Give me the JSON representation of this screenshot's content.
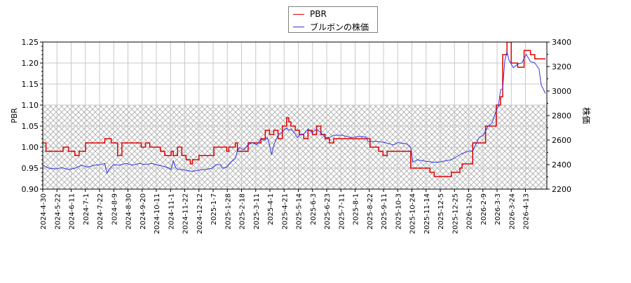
{
  "chart_data": {
    "type": "line",
    "title": "",
    "legend": {
      "position": "top-center",
      "entries": [
        {
          "label": "PBR",
          "color": "#e00000"
        },
        {
          "label": "ブルボンの株価",
          "color": "#3333dd"
        }
      ]
    },
    "xlabel": "",
    "ylabel_left": "PBR",
    "ylabel_right": "株価",
    "ylim_left": [
      0.9,
      1.25
    ],
    "ylim_right": [
      2200,
      3400
    ],
    "yticks_left": [
      "0.90",
      "0.95",
      "1.00",
      "1.05",
      "1.10",
      "1.15",
      "1.20",
      "1.25"
    ],
    "yticks_right": [
      "2200",
      "2400",
      "2600",
      "2800",
      "3000",
      "3200",
      "3400"
    ],
    "xticks": [
      "2024-4-30",
      "2024-5-22",
      "2024-6-11",
      "2024-7-1",
      "2024-7-22",
      "2024-8-9",
      "2024-8-30",
      "2024-9-20",
      "2024-10-11",
      "2024-11-1",
      "2024-11-22",
      "2024-12-12",
      "2025-1-7",
      "2025-1-28",
      "2025-2-18",
      "2025-3-11",
      "2025-4-1",
      "2025-4-21",
      "2025-5-14",
      "2025-6-3",
      "2025-6-23",
      "2025-7-11",
      "2025-8-1",
      "2025-8-22",
      "2025-9-11",
      "2025-10-3",
      "2025-10-24",
      "2025-11-14",
      "2025-12-5",
      "2025-12-25",
      "2026-1-20",
      "2026-2-9",
      "2026-3-3",
      "2026-3-24",
      "2026-4-13"
    ],
    "grid": true,
    "hatched_region": {
      "pbr_from": 0.9,
      "pbr_to": 1.1
    },
    "series": [
      {
        "name": "PBR",
        "axis": "left",
        "color": "#e00000",
        "step": true,
        "points": [
          [
            0,
            1.01
          ],
          [
            1.5,
            0.99
          ],
          [
            9,
            0.99
          ],
          [
            9.5,
            1.0
          ],
          [
            12,
            0.99
          ],
          [
            15,
            0.98
          ],
          [
            17,
            0.99
          ],
          [
            20,
            1.01
          ],
          [
            28,
            1.01
          ],
          [
            29,
            1.02
          ],
          [
            31,
            1.02
          ],
          [
            32,
            1.01
          ],
          [
            34,
            1.01
          ],
          [
            35,
            0.98
          ],
          [
            37,
            1.01
          ],
          [
            44,
            1.01
          ],
          [
            46,
            1.0
          ],
          [
            47,
            1.0
          ],
          [
            48,
            1.01
          ],
          [
            50,
            1.0
          ],
          [
            54,
            1.0
          ],
          [
            55,
            0.99
          ],
          [
            57,
            0.98
          ],
          [
            59,
            0.98
          ],
          [
            60,
            0.99
          ],
          [
            61,
            0.98
          ],
          [
            62,
            0.98
          ],
          [
            63,
            1.0
          ],
          [
            64,
            1.0
          ],
          [
            65,
            0.98
          ],
          [
            67,
            0.97
          ],
          [
            68,
            0.97
          ],
          [
            69,
            0.96
          ],
          [
            70,
            0.97
          ],
          [
            72,
            0.97
          ],
          [
            73,
            0.98
          ],
          [
            79,
            0.98
          ],
          [
            80,
            1.0
          ],
          [
            84,
            1.0
          ],
          [
            86,
            0.99
          ],
          [
            87,
            1.0
          ],
          [
            89,
            1.0
          ],
          [
            90,
            1.01
          ],
          [
            91,
            0.99
          ],
          [
            96,
            1.01
          ],
          [
            100,
            1.01
          ],
          [
            102,
            1.02
          ],
          [
            104,
            1.04
          ],
          [
            106,
            1.03
          ],
          [
            108,
            1.04
          ],
          [
            110,
            1.02
          ],
          [
            112,
            1.05
          ],
          [
            114,
            1.07
          ],
          [
            115,
            1.06
          ],
          [
            116,
            1.05
          ],
          [
            118,
            1.04
          ],
          [
            120,
            1.03
          ],
          [
            122,
            1.02
          ],
          [
            124,
            1.04
          ],
          [
            126,
            1.03
          ],
          [
            128,
            1.05
          ],
          [
            130,
            1.03
          ],
          [
            132,
            1.02
          ],
          [
            134,
            1.01
          ],
          [
            136,
            1.02
          ],
          [
            152,
            1.02
          ],
          [
            153,
            1.0
          ],
          [
            156,
            1.0
          ],
          [
            157,
            0.99
          ],
          [
            159,
            0.98
          ],
          [
            161,
            0.99
          ],
          [
            171,
            0.99
          ],
          [
            172,
            0.95
          ],
          [
            180,
            0.95
          ],
          [
            181,
            0.94
          ],
          [
            183,
            0.93
          ],
          [
            189,
            0.93
          ],
          [
            191,
            0.94
          ],
          [
            194,
            0.94
          ],
          [
            195,
            0.95
          ],
          [
            196,
            0.96
          ],
          [
            200,
            0.96
          ],
          [
            201,
            1.01
          ],
          [
            206,
            1.01
          ],
          [
            207,
            1.05
          ],
          [
            211,
            1.05
          ],
          [
            212,
            1.1
          ],
          [
            214,
            1.12
          ],
          [
            215,
            1.22
          ],
          [
            217,
            1.25
          ],
          [
            219,
            1.2
          ],
          [
            222,
            1.19
          ],
          [
            224,
            1.19
          ],
          [
            225,
            1.23
          ],
          [
            228,
            1.22
          ],
          [
            230,
            1.21
          ],
          [
            235,
            1.21
          ]
        ]
      },
      {
        "name": "ブルボンの株価",
        "axis": "right",
        "color": "#3333dd",
        "step": false,
        "points": [
          [
            0,
            2395
          ],
          [
            3,
            2370
          ],
          [
            6,
            2365
          ],
          [
            9,
            2375
          ],
          [
            12,
            2360
          ],
          [
            15,
            2370
          ],
          [
            18,
            2395
          ],
          [
            21,
            2380
          ],
          [
            24,
            2395
          ],
          [
            27,
            2400
          ],
          [
            29,
            2410
          ],
          [
            30,
            2330
          ],
          [
            31,
            2360
          ],
          [
            33,
            2400
          ],
          [
            36,
            2395
          ],
          [
            39,
            2410
          ],
          [
            42,
            2395
          ],
          [
            45,
            2410
          ],
          [
            48,
            2400
          ],
          [
            51,
            2410
          ],
          [
            54,
            2395
          ],
          [
            57,
            2385
          ],
          [
            59,
            2370
          ],
          [
            60,
            2360
          ],
          [
            61,
            2430
          ],
          [
            62,
            2380
          ],
          [
            63,
            2360
          ],
          [
            65,
            2360
          ],
          [
            68,
            2350
          ],
          [
            70,
            2345
          ],
          [
            73,
            2355
          ],
          [
            76,
            2360
          ],
          [
            79,
            2370
          ],
          [
            81,
            2400
          ],
          [
            83,
            2400
          ],
          [
            84,
            2370
          ],
          [
            86,
            2380
          ],
          [
            88,
            2420
          ],
          [
            90,
            2450
          ],
          [
            91,
            2510
          ],
          [
            92,
            2540
          ],
          [
            94,
            2520
          ],
          [
            96,
            2560
          ],
          [
            98,
            2580
          ],
          [
            100,
            2560
          ],
          [
            102,
            2610
          ],
          [
            103,
            2600
          ],
          [
            104,
            2600
          ],
          [
            105,
            2620
          ],
          [
            106,
            2560
          ],
          [
            107,
            2480
          ],
          [
            108,
            2560
          ],
          [
            110,
            2640
          ],
          [
            112,
            2670
          ],
          [
            114,
            2700
          ],
          [
            115,
            2680
          ],
          [
            116,
            2690
          ],
          [
            118,
            2650
          ],
          [
            119,
            2620
          ],
          [
            120,
            2640
          ],
          [
            122,
            2650
          ],
          [
            124,
            2690
          ],
          [
            126,
            2660
          ],
          [
            128,
            2690
          ],
          [
            130,
            2660
          ],
          [
            132,
            2620
          ],
          [
            134,
            2620
          ],
          [
            136,
            2640
          ],
          [
            140,
            2640
          ],
          [
            144,
            2620
          ],
          [
            148,
            2630
          ],
          [
            151,
            2625
          ],
          [
            152,
            2590
          ],
          [
            156,
            2590
          ],
          [
            160,
            2580
          ],
          [
            164,
            2560
          ],
          [
            166,
            2580
          ],
          [
            170,
            2570
          ],
          [
            172,
            2540
          ],
          [
            173,
            2420
          ],
          [
            175,
            2440
          ],
          [
            178,
            2430
          ],
          [
            182,
            2420
          ],
          [
            185,
            2420
          ],
          [
            188,
            2430
          ],
          [
            191,
            2440
          ],
          [
            194,
            2470
          ],
          [
            196,
            2490
          ],
          [
            199,
            2510
          ],
          [
            201,
            2510
          ],
          [
            202,
            2550
          ],
          [
            204,
            2620
          ],
          [
            206,
            2640
          ],
          [
            208,
            2710
          ],
          [
            210,
            2740
          ],
          [
            211,
            2790
          ],
          [
            212,
            2840
          ],
          [
            213,
            2880
          ],
          [
            214,
            3010
          ],
          [
            215,
            3020
          ],
          [
            216,
            3250
          ],
          [
            217,
            3320
          ],
          [
            218,
            3250
          ],
          [
            220,
            3190
          ],
          [
            222,
            3220
          ],
          [
            224,
            3230
          ],
          [
            226,
            3300
          ],
          [
            228,
            3240
          ],
          [
            230,
            3230
          ],
          [
            232,
            3180
          ],
          [
            233,
            3050
          ],
          [
            235,
            2980
          ]
        ]
      }
    ]
  }
}
